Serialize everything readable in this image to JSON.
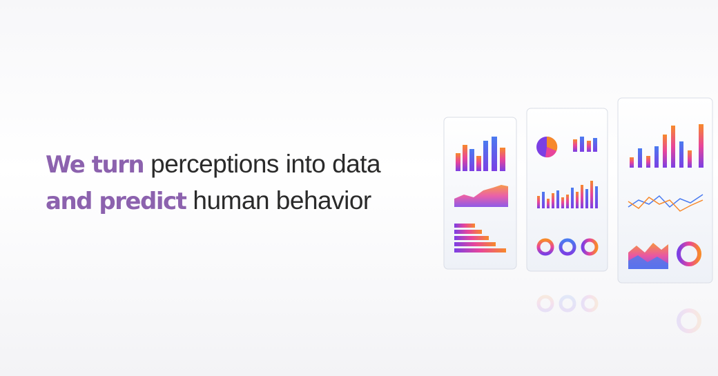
{
  "headline": {
    "line1": {
      "emphasis": "We turn",
      "rest": "perceptions into data"
    },
    "line2": {
      "emphasis": "and predict",
      "rest": "human behavior"
    }
  }
}
